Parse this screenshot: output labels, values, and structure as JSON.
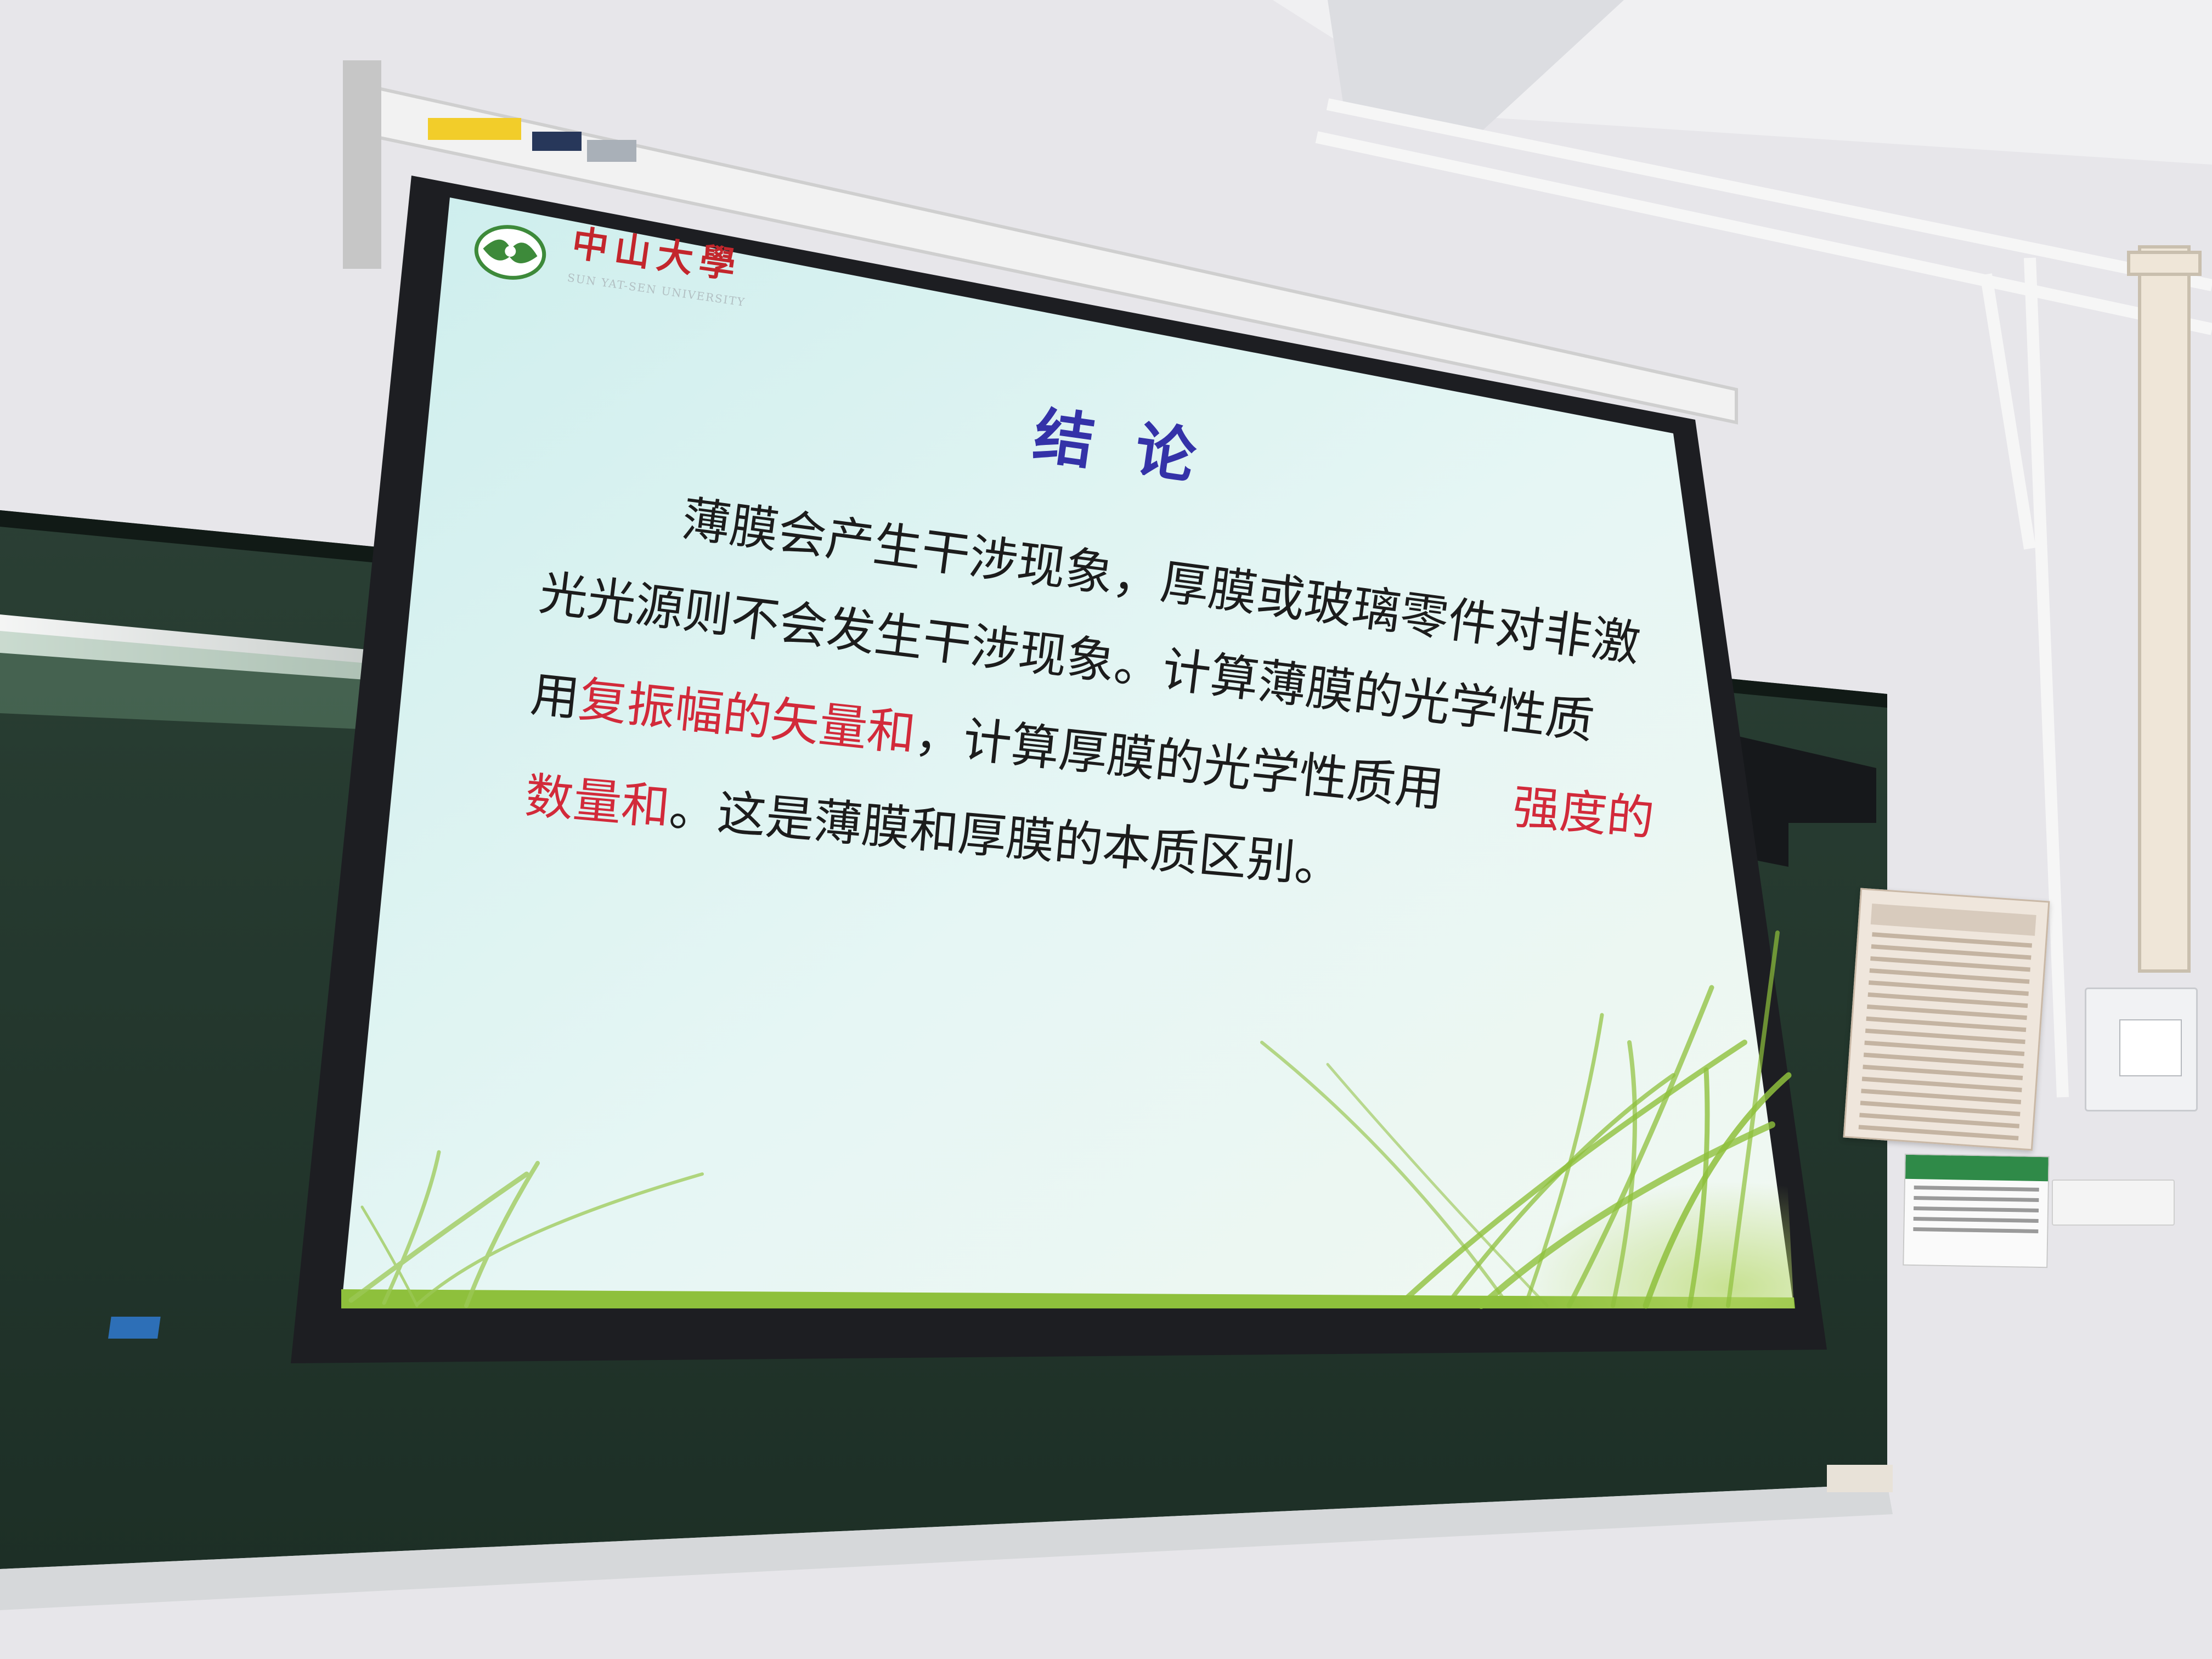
{
  "slide": {
    "logo": {
      "name_cn": "中山大學",
      "name_en": "SUN YAT-SEN UNIVERSITY",
      "emblem_color": "#3d8a3a",
      "name_color": "#c3262c"
    },
    "title": "结  论",
    "title_color": "#3432a8",
    "body_color": "#1c1c1c",
    "highlight_color": "#d22a3a",
    "lines": [
      [
        {
          "t": "薄膜会产生干涉现象，厚膜或玻璃零件对非激",
          "hl": false
        }
      ],
      [
        {
          "t": "光光源则不会发生干涉现象。计算薄膜的光学性质",
          "hl": false
        }
      ],
      [
        {
          "t": "用",
          "hl": false
        },
        {
          "t": "复振幅的矢量和",
          "hl": true
        },
        {
          "t": "，计算厚膜的光学性质用",
          "hl": false
        }
      ],
      [
        {
          "t": "强度的",
          "hl": true
        }
      ],
      [
        {
          "t": "数量和",
          "hl": true
        },
        {
          "t": "。这是薄膜和厚膜的本质区别。",
          "hl": false
        }
      ]
    ]
  },
  "colors": {
    "wall": "#e7e6ea",
    "chalkboard": "#23372d",
    "screen_bg": "#d9f0ee",
    "screen_border": "#1d1e22",
    "grass": "#8ec03c"
  }
}
